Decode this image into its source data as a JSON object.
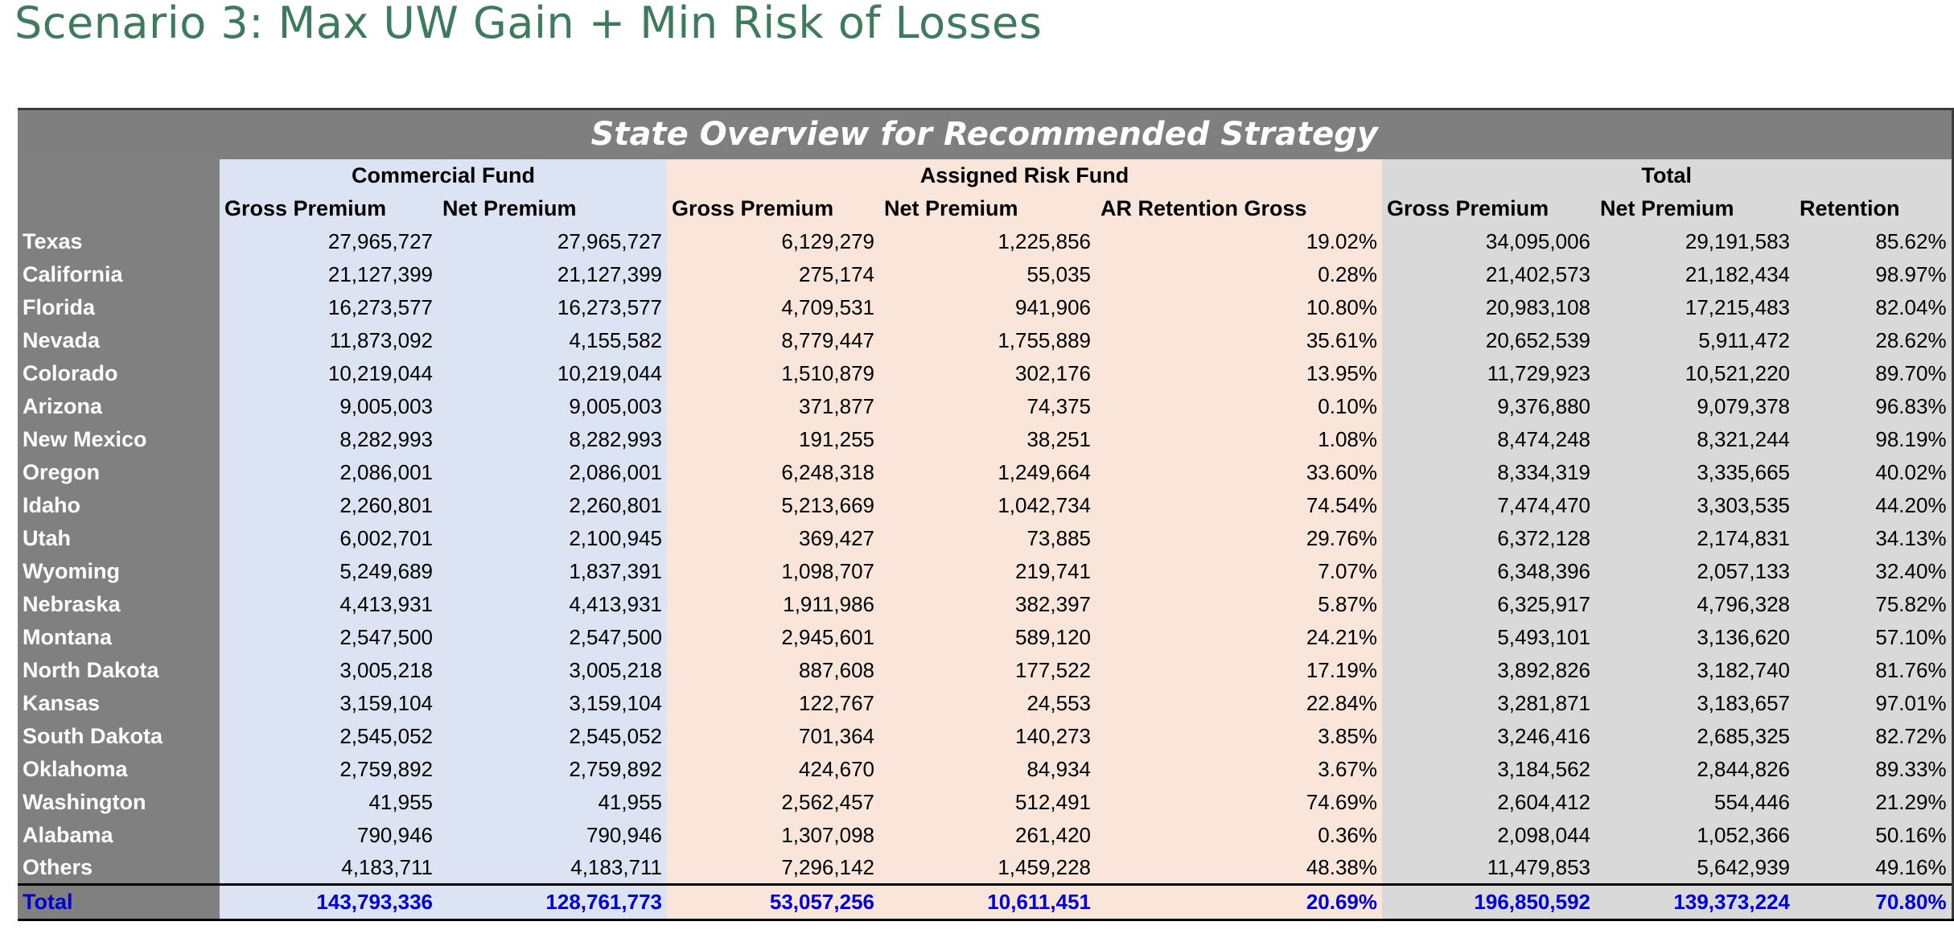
{
  "page": {
    "title": "Scenario 3:  Max UW Gain + Min Risk of Losses"
  },
  "table": {
    "banner": "State Overview for Recommended Strategy",
    "groups": {
      "commercial": "Commercial Fund",
      "assigned": "Assigned Risk Fund",
      "total": "Total"
    },
    "columns": [
      "Gross Premium",
      "Net Premium",
      "Gross Premium",
      "Net Premium",
      "AR Retention Gross",
      "Gross Premium",
      "Net Premium",
      "Retention"
    ],
    "rows": [
      [
        "Texas",
        "27,965,727",
        "27,965,727",
        "6,129,279",
        "1,225,856",
        "19.02%",
        "34,095,006",
        "29,191,583",
        "85.62%"
      ],
      [
        "California",
        "21,127,399",
        "21,127,399",
        "275,174",
        "55,035",
        "0.28%",
        "21,402,573",
        "21,182,434",
        "98.97%"
      ],
      [
        "Florida",
        "16,273,577",
        "16,273,577",
        "4,709,531",
        "941,906",
        "10.80%",
        "20,983,108",
        "17,215,483",
        "82.04%"
      ],
      [
        "Nevada",
        "11,873,092",
        "4,155,582",
        "8,779,447",
        "1,755,889",
        "35.61%",
        "20,652,539",
        "5,911,472",
        "28.62%"
      ],
      [
        "Colorado",
        "10,219,044",
        "10,219,044",
        "1,510,879",
        "302,176",
        "13.95%",
        "11,729,923",
        "10,521,220",
        "89.70%"
      ],
      [
        "Arizona",
        "9,005,003",
        "9,005,003",
        "371,877",
        "74,375",
        "0.10%",
        "9,376,880",
        "9,079,378",
        "96.83%"
      ],
      [
        "New Mexico",
        "8,282,993",
        "8,282,993",
        "191,255",
        "38,251",
        "1.08%",
        "8,474,248",
        "8,321,244",
        "98.19%"
      ],
      [
        "Oregon",
        "2,086,001",
        "2,086,001",
        "6,248,318",
        "1,249,664",
        "33.60%",
        "8,334,319",
        "3,335,665",
        "40.02%"
      ],
      [
        "Idaho",
        "2,260,801",
        "2,260,801",
        "5,213,669",
        "1,042,734",
        "74.54%",
        "7,474,470",
        "3,303,535",
        "44.20%"
      ],
      [
        "Utah",
        "6,002,701",
        "2,100,945",
        "369,427",
        "73,885",
        "29.76%",
        "6,372,128",
        "2,174,831",
        "34.13%"
      ],
      [
        "Wyoming",
        "5,249,689",
        "1,837,391",
        "1,098,707",
        "219,741",
        "7.07%",
        "6,348,396",
        "2,057,133",
        "32.40%"
      ],
      [
        "Nebraska",
        "4,413,931",
        "4,413,931",
        "1,911,986",
        "382,397",
        "5.87%",
        "6,325,917",
        "4,796,328",
        "75.82%"
      ],
      [
        "Montana",
        "2,547,500",
        "2,547,500",
        "2,945,601",
        "589,120",
        "24.21%",
        "5,493,101",
        "3,136,620",
        "57.10%"
      ],
      [
        "North Dakota",
        "3,005,218",
        "3,005,218",
        "887,608",
        "177,522",
        "17.19%",
        "3,892,826",
        "3,182,740",
        "81.76%"
      ],
      [
        "Kansas",
        "3,159,104",
        "3,159,104",
        "122,767",
        "24,553",
        "22.84%",
        "3,281,871",
        "3,183,657",
        "97.01%"
      ],
      [
        "South Dakota",
        "2,545,052",
        "2,545,052",
        "701,364",
        "140,273",
        "3.85%",
        "3,246,416",
        "2,685,325",
        "82.72%"
      ],
      [
        "Oklahoma",
        "2,759,892",
        "2,759,892",
        "424,670",
        "84,934",
        "3.67%",
        "3,184,562",
        "2,844,826",
        "89.33%"
      ],
      [
        "Washington",
        "41,955",
        "41,955",
        "2,562,457",
        "512,491",
        "74.69%",
        "2,604,412",
        "554,446",
        "21.29%"
      ],
      [
        "Alabama",
        "790,946",
        "790,946",
        "1,307,098",
        "261,420",
        "0.36%",
        "2,098,044",
        "1,052,366",
        "50.16%"
      ],
      [
        "Others",
        "4,183,711",
        "4,183,711",
        "7,296,142",
        "1,459,228",
        "48.38%",
        "11,479,853",
        "5,642,939",
        "49.16%"
      ]
    ],
    "total": [
      "Total",
      "143,793,336",
      "128,761,773",
      "53,057,256",
      "10,611,451",
      "20.69%",
      "196,850,592",
      "139,373,224",
      "70.80%"
    ]
  },
  "colors": {
    "title": "#3E7A5C",
    "banner_bg": "#7F7F7F",
    "state_col_bg": "#808080",
    "commercial_bg": "#DCE3F2",
    "assigned_bg": "#F9E5DA",
    "total_bg": "#D9D9D9",
    "total_row_text": "#0000D6"
  }
}
